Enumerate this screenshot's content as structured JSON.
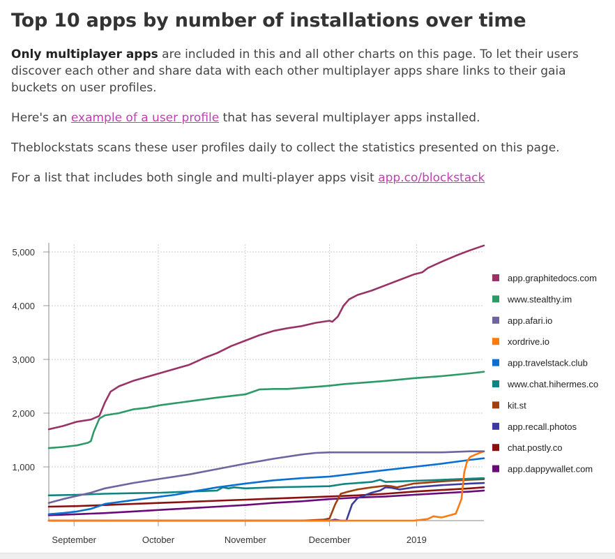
{
  "page": {
    "title": "Top 10 apps by number of installations over time",
    "intro_bold": "Only multiplayer apps",
    "intro_rest": " are included in this and all other charts on this page. To let their users discover each other and share data with each other multiplayer apps share links to their gaia buckets on user profiles.",
    "example_prefix": "Here's an ",
    "example_link": "example of a user profile",
    "example_suffix": " that has several multiplayer apps installed.",
    "scan_text": "Theblockstats scans these user profiles daily to collect the statistics presented on this page.",
    "list_prefix": "For a list that includes both single and multi-player apps visit ",
    "list_link": "app.co/blockstack"
  },
  "chart_data": {
    "type": "line",
    "title": "Top 10 apps by number of installations over time",
    "xlabel": "",
    "ylabel": "",
    "x_unit": "days since Aug 23, 2018",
    "xlim": [
      0,
      155
    ],
    "ylim": [
      0,
      5000
    ],
    "yticks": [
      1000,
      2000,
      3000,
      4000,
      5000
    ],
    "ytick_labels": [
      "1,000",
      "2,000",
      "3,000",
      "4,000",
      "5,000"
    ],
    "xticks": [
      9,
      39,
      70,
      100,
      131
    ],
    "xtick_labels": [
      "September",
      "October",
      "November",
      "December",
      "2019"
    ],
    "grid": true,
    "legend_position": "right",
    "series": [
      {
        "name": "app.graphitedocs.com",
        "color": "#993366",
        "x": [
          0,
          5,
          10,
          15,
          18,
          20,
          22,
          25,
          30,
          40,
          50,
          53,
          55,
          60,
          65,
          70,
          75,
          80,
          85,
          90,
          95,
          100,
          101,
          103,
          105,
          107,
          110,
          115,
          120,
          125,
          130,
          133,
          135,
          140,
          145,
          150,
          155
        ],
        "y": [
          1700,
          1760,
          1840,
          1880,
          1950,
          2200,
          2400,
          2500,
          2600,
          2750,
          2900,
          2970,
          3020,
          3120,
          3250,
          3350,
          3450,
          3530,
          3580,
          3620,
          3680,
          3720,
          3700,
          3800,
          4000,
          4120,
          4200,
          4280,
          4380,
          4480,
          4580,
          4620,
          4700,
          4820,
          4930,
          5030,
          5120
        ]
      },
      {
        "name": "www.stealthy.im",
        "color": "#2e9966",
        "x": [
          0,
          5,
          10,
          14,
          15,
          16,
          18,
          20,
          25,
          30,
          35,
          40,
          50,
          60,
          70,
          75,
          80,
          85,
          90,
          95,
          100,
          105,
          110,
          120,
          130,
          140,
          150,
          155
        ],
        "y": [
          1350,
          1370,
          1400,
          1450,
          1480,
          1650,
          1900,
          1960,
          2000,
          2070,
          2100,
          2150,
          2220,
          2290,
          2350,
          2440,
          2450,
          2450,
          2470,
          2490,
          2510,
          2540,
          2560,
          2600,
          2650,
          2690,
          2740,
          2770
        ]
      },
      {
        "name": "app.afari.io",
        "color": "#6f64a0",
        "x": [
          0,
          5,
          10,
          15,
          20,
          30,
          40,
          50,
          60,
          70,
          80,
          90,
          95,
          100,
          110,
          120,
          130,
          140,
          150,
          155
        ],
        "y": [
          330,
          400,
          460,
          520,
          600,
          700,
          780,
          860,
          960,
          1060,
          1150,
          1230,
          1260,
          1270,
          1270,
          1270,
          1270,
          1270,
          1290,
          1290
        ]
      },
      {
        "name": "xordrive.io",
        "color": "#ff7a10",
        "x": [
          0,
          30,
          60,
          90,
          100,
          110,
          120,
          130,
          135,
          137,
          140,
          143,
          145,
          147,
          148,
          149,
          150,
          152,
          155
        ],
        "y": [
          0,
          0,
          0,
          0,
          0,
          0,
          0,
          0,
          30,
          80,
          60,
          100,
          130,
          400,
          900,
          1100,
          1180,
          1230,
          1290
        ]
      },
      {
        "name": "app.travelstack.club",
        "color": "#0a6fd0",
        "x": [
          0,
          5,
          10,
          15,
          20,
          30,
          40,
          45,
          50,
          60,
          70,
          80,
          90,
          100,
          110,
          120,
          130,
          140,
          150,
          155
        ],
        "y": [
          120,
          140,
          170,
          220,
          310,
          380,
          450,
          480,
          530,
          620,
          690,
          750,
          790,
          820,
          880,
          940,
          1000,
          1060,
          1130,
          1160
        ]
      },
      {
        "name": "www.chat.hihermes.co",
        "color": "#0f8480",
        "x": [
          0,
          10,
          20,
          30,
          40,
          50,
          60,
          62,
          64,
          66,
          70,
          80,
          90,
          100,
          105,
          110,
          115,
          118,
          120,
          125,
          130,
          140,
          150,
          155
        ],
        "y": [
          470,
          480,
          500,
          510,
          520,
          540,
          560,
          620,
          600,
          620,
          600,
          620,
          630,
          640,
          680,
          700,
          720,
          760,
          720,
          730,
          740,
          760,
          780,
          790
        ]
      },
      {
        "name": "kit.st",
        "color": "#a0400e",
        "x": [
          0,
          30,
          60,
          90,
          98,
          100,
          102,
          104,
          106,
          110,
          115,
          120,
          122,
          124,
          130,
          140,
          150,
          155
        ],
        "y": [
          0,
          0,
          0,
          0,
          20,
          40,
          300,
          500,
          530,
          580,
          620,
          650,
          640,
          620,
          690,
          730,
          760,
          770
        ]
      },
      {
        "name": "app.recall.photos",
        "color": "#3a3aa0",
        "x": [
          0,
          30,
          60,
          90,
          100,
          102,
          104,
          106,
          108,
          110,
          115,
          118,
          120,
          122,
          125,
          130,
          140,
          150,
          155
        ],
        "y": [
          0,
          0,
          0,
          0,
          0,
          20,
          0,
          0,
          300,
          420,
          520,
          560,
          620,
          610,
          580,
          620,
          660,
          690,
          700
        ]
      },
      {
        "name": "chat.postly.co",
        "color": "#8a0f0f",
        "x": [
          0,
          10,
          20,
          30,
          40,
          50,
          60,
          70,
          80,
          90,
          100,
          110,
          120,
          130,
          140,
          150,
          155
        ],
        "y": [
          260,
          270,
          290,
          310,
          330,
          350,
          370,
          390,
          410,
          430,
          450,
          470,
          500,
          540,
          570,
          600,
          620
        ]
      },
      {
        "name": "app.dappywallet.com",
        "color": "#6a0a78",
        "x": [
          0,
          10,
          20,
          30,
          40,
          50,
          60,
          70,
          80,
          90,
          100,
          110,
          120,
          130,
          140,
          150,
          155
        ],
        "y": [
          100,
          120,
          140,
          170,
          200,
          230,
          260,
          290,
          330,
          360,
          400,
          430,
          450,
          480,
          510,
          540,
          560
        ]
      }
    ]
  }
}
